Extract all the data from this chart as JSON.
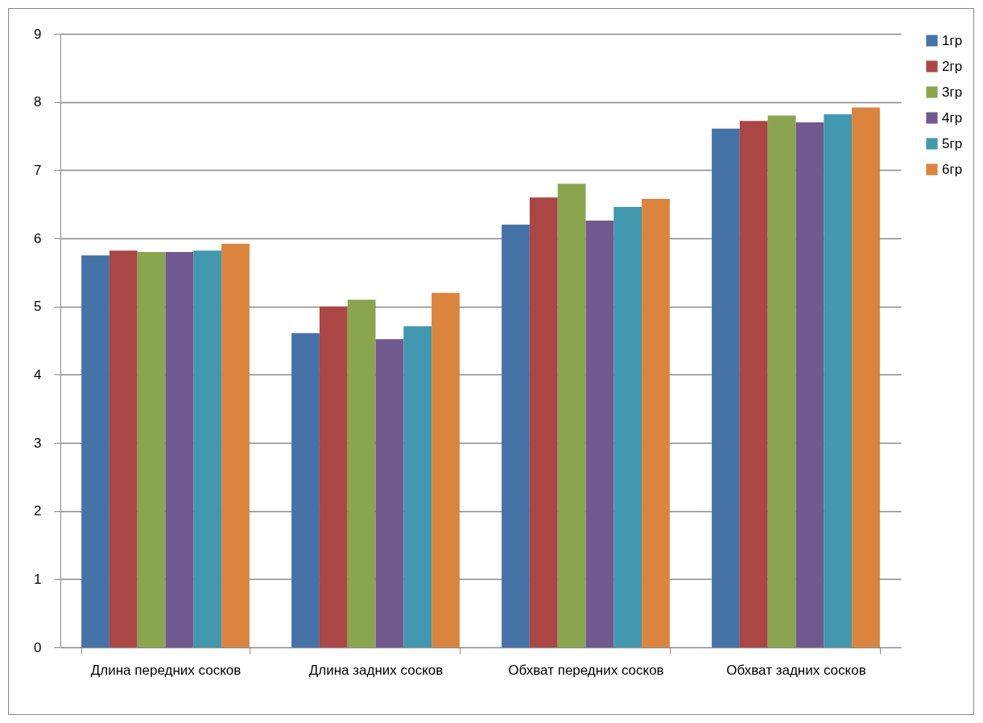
{
  "chart_data": {
    "type": "bar",
    "categories": [
      "Длина передних сосков",
      "Длина задних сосков",
      "Обхват передних сосков",
      "Обхват задних сосков"
    ],
    "series": [
      {
        "name": "1гр",
        "color": "#4572a7",
        "values": [
          5.75,
          4.61,
          6.2,
          7.61
        ]
      },
      {
        "name": "2гр",
        "color": "#aa4643",
        "values": [
          5.82,
          5.0,
          6.6,
          7.72
        ]
      },
      {
        "name": "3гр",
        "color": "#89a54e",
        "values": [
          5.8,
          5.1,
          6.8,
          7.8
        ]
      },
      {
        "name": "4гр",
        "color": "#71588f",
        "values": [
          5.8,
          4.52,
          6.26,
          7.7
        ]
      },
      {
        "name": "5гр",
        "color": "#4198af",
        "values": [
          5.82,
          4.71,
          6.46,
          7.82
        ]
      },
      {
        "name": "6гр",
        "color": "#db843d",
        "values": [
          5.92,
          5.2,
          6.58,
          7.92
        ]
      }
    ],
    "ylim": [
      0,
      9
    ],
    "yticks": [
      0,
      1,
      2,
      3,
      4,
      5,
      6,
      7,
      8,
      9
    ],
    "grid": "y",
    "legend": "right"
  }
}
